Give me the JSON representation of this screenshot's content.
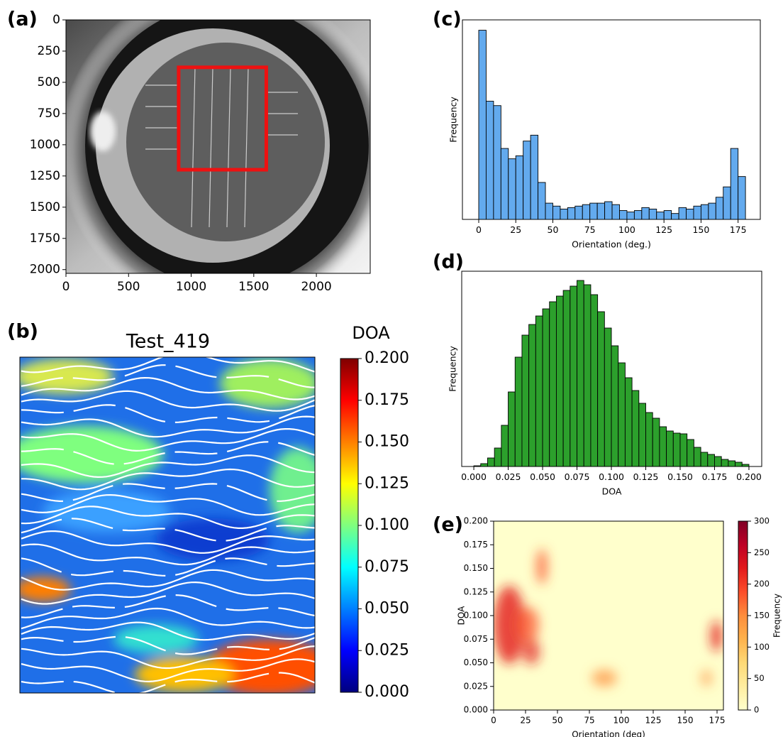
{
  "chart_data": [
    {
      "type": "image",
      "panel_label": "(a)",
      "xlim": [
        0,
        2430
      ],
      "ylim": [
        2030,
        0
      ],
      "xticks": [
        0,
        500,
        1000,
        1500,
        2000
      ],
      "yticks": [
        0,
        250,
        500,
        750,
        1000,
        1250,
        1500,
        1750,
        2000
      ],
      "roi": {
        "x": [
          900,
          1600
        ],
        "y": [
          380,
          1200
        ],
        "color": "#ee1111"
      }
    },
    {
      "type": "field",
      "panel_label": "(b)",
      "title": "Test_419",
      "colorbar": {
        "label": "DOA",
        "lim": [
          0,
          0.2
        ],
        "colors": [
          "#00007f",
          "#0000ff",
          "#007fff",
          "#00ffff",
          "#7fff7f",
          "#ffff00",
          "#ff7f00",
          "#ff0000",
          "#7f0000"
        ],
        "ticks": [
          {
            "value": 0,
            "label": "0.000"
          },
          {
            "value": 0.025,
            "label": "0.025"
          },
          {
            "value": 0.05,
            "label": "0.050"
          },
          {
            "value": 0.075,
            "label": "0.075"
          },
          {
            "value": 0.1,
            "label": "0.100"
          },
          {
            "value": 0.125,
            "label": "0.125"
          },
          {
            "value": 0.15,
            "label": "0.150"
          },
          {
            "value": 0.175,
            "label": "0.175"
          },
          {
            "value": 0.2,
            "label": "0.200"
          }
        ]
      }
    },
    {
      "type": "histogram",
      "panel_label": "(c)",
      "x_label": "Orientation (deg.)",
      "y_label": "Frequency",
      "color": "#63aaee",
      "bins": [
        0,
        5,
        10,
        15,
        20,
        25,
        30,
        35,
        40,
        45,
        50,
        55,
        60,
        65,
        70,
        75,
        80,
        85,
        90,
        95,
        100,
        105,
        110,
        115,
        120,
        125,
        130,
        135,
        140,
        145,
        150,
        155,
        160,
        165,
        170,
        175,
        180
      ],
      "values": [
        256,
        160,
        154,
        96,
        82,
        86,
        106,
        114,
        50,
        22,
        18,
        14,
        16,
        18,
        20,
        22,
        22,
        24,
        20,
        12,
        10,
        12,
        16,
        14,
        10,
        12,
        8,
        16,
        14,
        18,
        20,
        22,
        30,
        44,
        96,
        58
      ],
      "xlim": [
        -11,
        190
      ],
      "ylim": [
        0,
        270
      ],
      "xticks": [
        0,
        25,
        50,
        75,
        100,
        125,
        150,
        175
      ]
    },
    {
      "type": "histogram",
      "panel_label": "(d)",
      "x_label": "DOA",
      "y_label": "Frequency",
      "color": "#2ca02c",
      "bins": [
        0,
        0.005,
        0.01,
        0.015,
        0.02,
        0.025,
        0.03,
        0.035,
        0.04,
        0.045,
        0.05,
        0.055,
        0.06,
        0.065,
        0.07,
        0.075,
        0.08,
        0.085,
        0.09,
        0.095,
        0.1,
        0.105,
        0.11,
        0.115,
        0.12,
        0.125,
        0.13,
        0.135,
        0.14,
        0.145,
        0.15,
        0.155,
        0.16,
        0.165,
        0.17,
        0.175,
        0.18,
        0.185,
        0.19,
        0.195,
        0.2
      ],
      "values": [
        1,
        4,
        12,
        26,
        58,
        105,
        154,
        185,
        200,
        212,
        222,
        232,
        240,
        248,
        254,
        262,
        256,
        242,
        218,
        195,
        170,
        146,
        125,
        107,
        89,
        76,
        68,
        56,
        50,
        47,
        46,
        38,
        27,
        20,
        17,
        14,
        10,
        8,
        6,
        3
      ],
      "xlim": [
        -0.0088,
        0.2093
      ],
      "ylim": [
        0,
        275
      ],
      "xticks": [
        {
          "value": 0,
          "label": "0.000"
        },
        {
          "value": 0.025,
          "label": "0.025"
        },
        {
          "value": 0.05,
          "label": "0.050"
        },
        {
          "value": 0.075,
          "label": "0.075"
        },
        {
          "value": 0.1,
          "label": "0.100"
        },
        {
          "value": 0.125,
          "label": "0.125"
        },
        {
          "value": 0.15,
          "label": "0.150"
        },
        {
          "value": 0.175,
          "label": "0.175"
        },
        {
          "value": 0.2,
          "label": "0.200"
        }
      ]
    },
    {
      "type": "heatmap",
      "panel_label": "(e)",
      "x_label": "Orientation (deg)",
      "y_label": "DOA",
      "xlim": [
        0,
        180
      ],
      "ylim": [
        0,
        0.2
      ],
      "xticks": [
        0,
        25,
        50,
        75,
        100,
        125,
        150,
        175
      ],
      "yticks": [
        {
          "value": 0,
          "label": "0.000"
        },
        {
          "value": 0.025,
          "label": "0.025"
        },
        {
          "value": 0.05,
          "label": "0.050"
        },
        {
          "value": 0.075,
          "label": "0.075"
        },
        {
          "value": 0.1,
          "label": "0.100"
        },
        {
          "value": 0.125,
          "label": "0.125"
        },
        {
          "value": 0.15,
          "label": "0.150"
        },
        {
          "value": 0.175,
          "label": "0.175"
        },
        {
          "value": 0.2,
          "label": "0.200"
        }
      ],
      "colorbar": {
        "label": "Frequency",
        "lim": [
          0,
          300
        ],
        "colors": [
          "#ffffcc",
          "#ffeda0",
          "#fed976",
          "#feb24c",
          "#fd8d3c",
          "#fc4e2a",
          "#e31a1c",
          "#bd0026",
          "#800026"
        ],
        "ticks": [
          0,
          50,
          100,
          150,
          200,
          250,
          300
        ]
      }
    }
  ]
}
